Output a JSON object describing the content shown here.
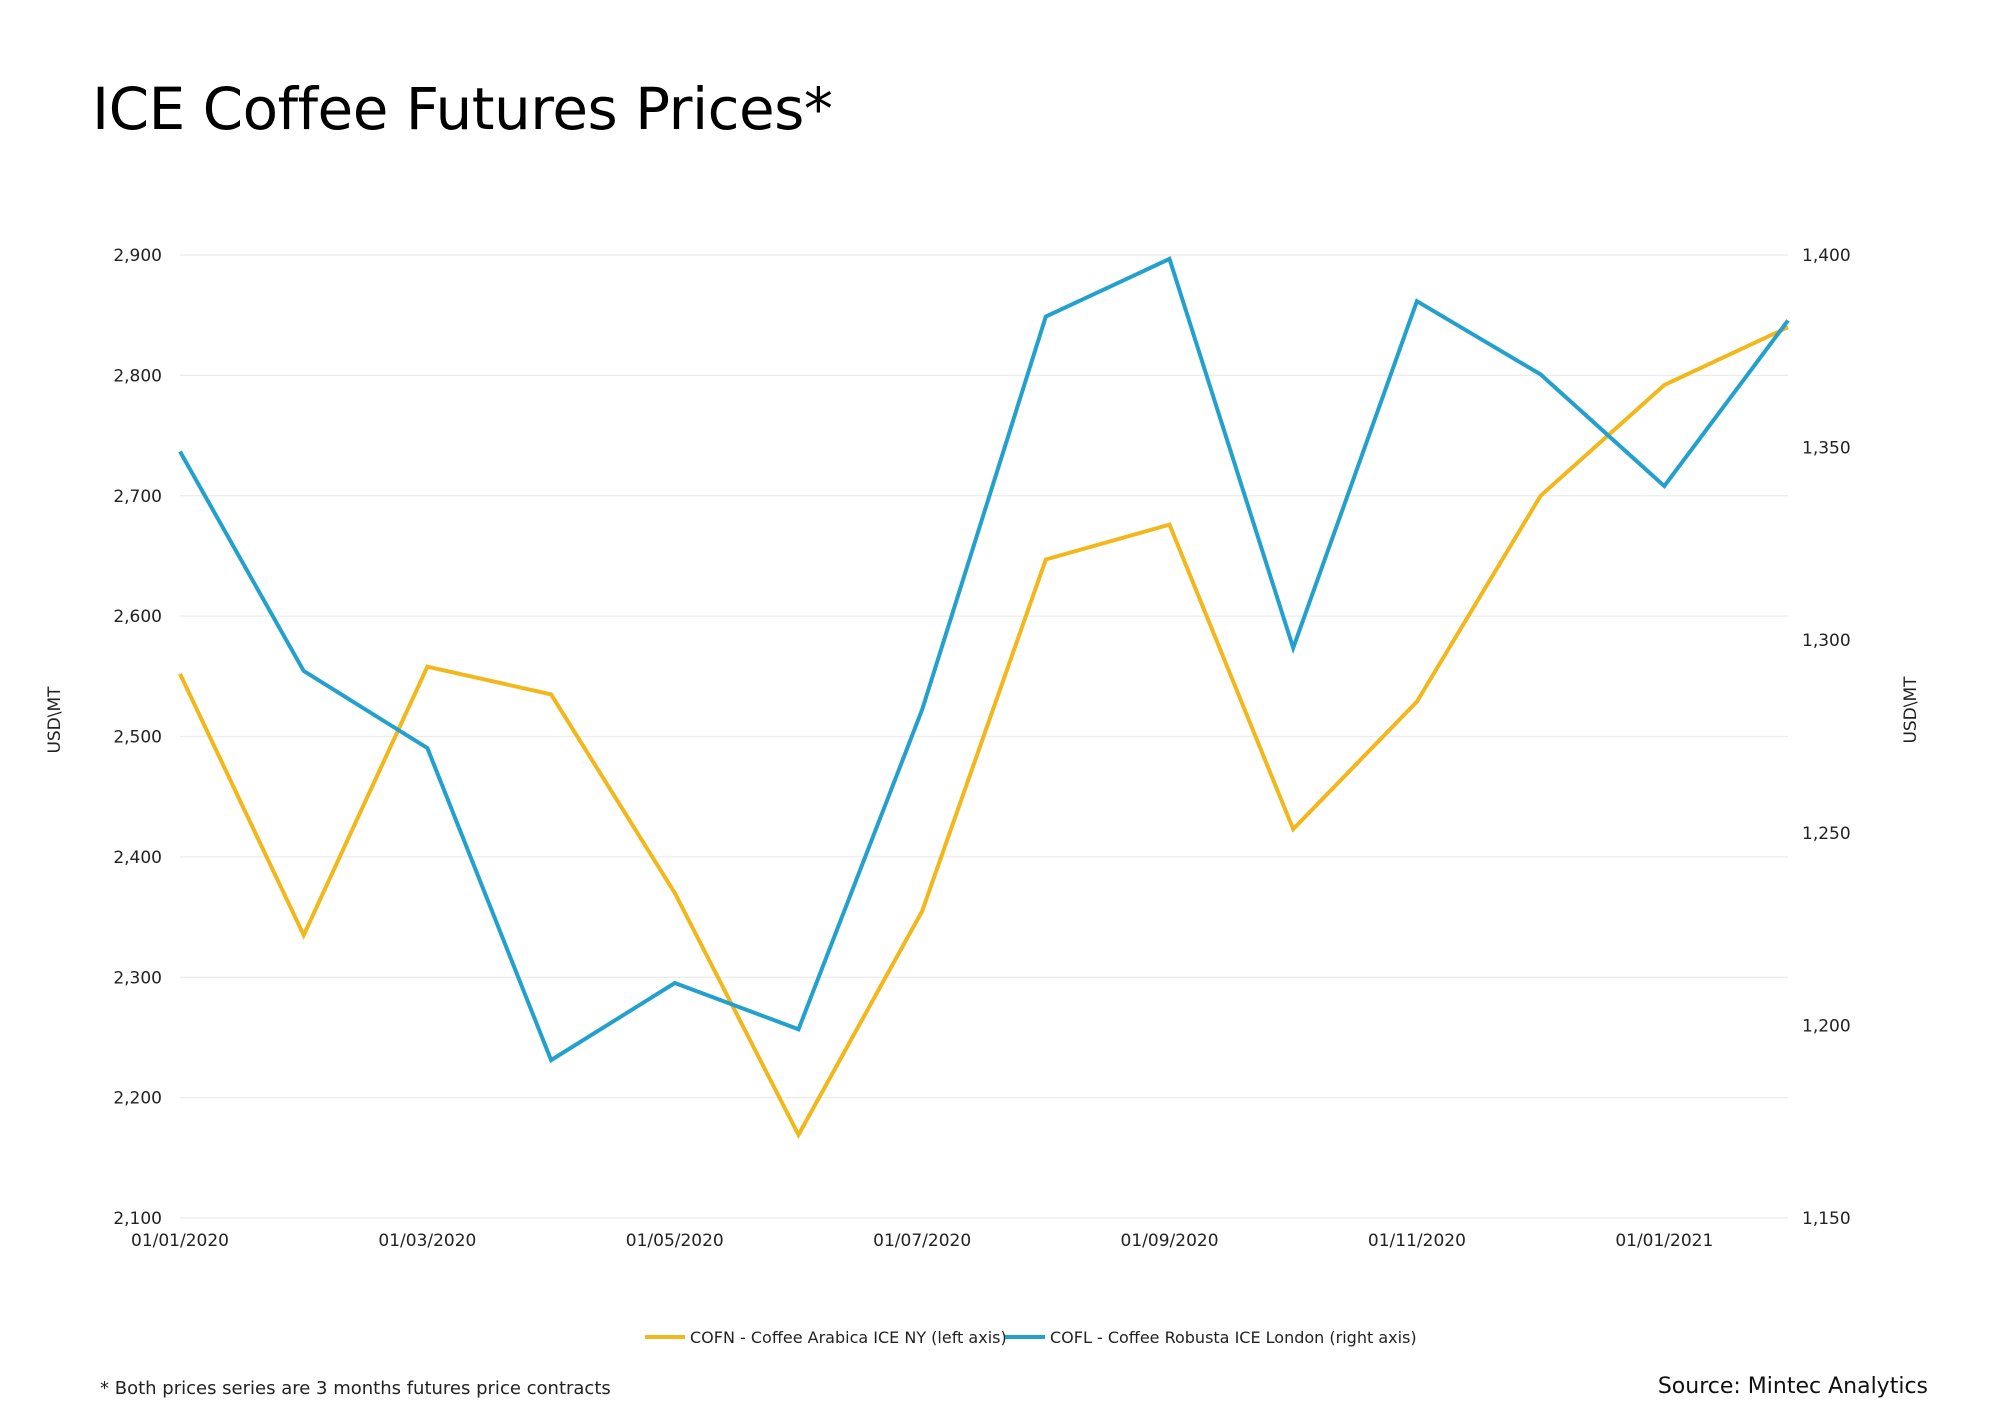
{
  "header": {
    "title": "ICE Coffee Futures Prices*"
  },
  "footer": {
    "footnote": "* Both prices series are 3 months futures price contracts",
    "source": "Source: Mintec Analytics"
  },
  "colors": {
    "arabica": "#f2b71b",
    "robusta": "#23a0cc",
    "grid": "#ececec"
  },
  "chart_data": {
    "type": "line",
    "x": [
      "01/01/2020",
      "01/02/2020",
      "01/03/2020",
      "01/04/2020",
      "01/05/2020",
      "01/06/2020",
      "01/07/2020",
      "01/08/2020",
      "01/09/2020",
      "01/10/2020",
      "01/11/2020",
      "01/12/2020",
      "01/01/2021",
      "01/02/2021"
    ],
    "x_tick_labels": [
      "01/01/2020",
      "01/03/2020",
      "01/05/2020",
      "01/07/2020",
      "01/09/2020",
      "01/11/2020",
      "01/01/2021"
    ],
    "y_left": {
      "label": "USD\\MT",
      "lim": [
        2100,
        2900
      ],
      "ticks": [
        "2,100",
        "2,200",
        "2,300",
        "2,400",
        "2,500",
        "2,600",
        "2,700",
        "2,800",
        "2,900"
      ]
    },
    "y_right": {
      "label": "USD\\MT",
      "lim": [
        1150,
        1400
      ],
      "ticks": [
        "1,150",
        "1,200",
        "1,250",
        "1,300",
        "1,350",
        "1,400"
      ]
    },
    "series": [
      {
        "name": "COFN - Coffee Arabica ICE NY (left axis)",
        "axis": "left",
        "values": [
          2552,
          2335,
          2558,
          2535,
          2370,
          2169,
          2355,
          2647,
          2676,
          2423,
          2529,
          2700,
          2792,
          2840
        ]
      },
      {
        "name": "COFL - Coffee Robusta  ICE London (right axis)",
        "axis": "right",
        "values": [
          1349,
          1292,
          1272,
          1191,
          1211,
          1199,
          1282,
          1384,
          1399,
          1298,
          1388,
          1369,
          1340,
          1383
        ]
      }
    ],
    "grid": true,
    "legend": "bottom-center"
  }
}
